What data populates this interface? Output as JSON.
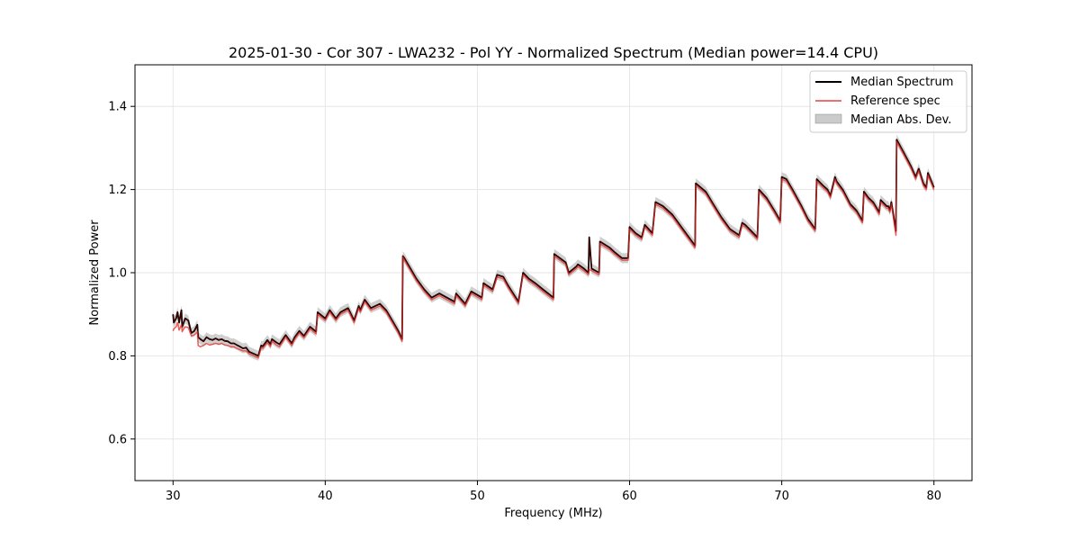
{
  "chart_data": {
    "type": "line",
    "title": "2025-01-30 - Cor 307 - LWA232 - Pol YY - Normalized Spectrum (Median power=14.4 CPU)",
    "xlabel": "Frequency (MHz)",
    "ylabel": "Normalized Power",
    "xlim": [
      27.5,
      82.5
    ],
    "ylim": [
      0.5,
      1.5
    ],
    "xticks": [
      30,
      40,
      50,
      60,
      70,
      80
    ],
    "yticks": [
      0.6,
      0.8,
      1.0,
      1.2,
      1.4
    ],
    "xtick_labels": [
      "30",
      "40",
      "50",
      "60",
      "70",
      "80"
    ],
    "ytick_labels": [
      "0.6",
      "0.8",
      "1.0",
      "1.2",
      "1.4"
    ],
    "grid": true,
    "legend_position": "top-right",
    "legend": [
      {
        "name": "Median Spectrum",
        "kind": "line",
        "color": "#000000"
      },
      {
        "name": "Reference spec",
        "kind": "line",
        "color": "#e8403a"
      },
      {
        "name": "Median Abs. Dev.",
        "kind": "band",
        "color": "#a8a8a8"
      }
    ],
    "series": [
      {
        "name": "Median Spectrum",
        "color": "#000000",
        "x": [
          30.0,
          30.05,
          30.2,
          30.3,
          30.4,
          30.55,
          30.6,
          30.7,
          30.8,
          31.0,
          31.2,
          31.4,
          31.6,
          31.65,
          31.8,
          32.0,
          32.2,
          32.4,
          32.6,
          32.8,
          33.0,
          33.2,
          33.4,
          33.6,
          33.8,
          34.0,
          34.2,
          34.4,
          34.6,
          34.8,
          35.0,
          35.3,
          35.6,
          35.8,
          35.9,
          36.2,
          36.4,
          36.5,
          36.8,
          37.0,
          37.4,
          37.8,
          38.0,
          38.3,
          38.6,
          39.0,
          39.4,
          39.5,
          40.0,
          40.3,
          40.7,
          41.0,
          41.5,
          41.9,
          42.2,
          42.3,
          42.6,
          43.0,
          43.6,
          44.0,
          44.4,
          44.8,
          45.05,
          45.1,
          45.2,
          46.0,
          46.5,
          47.0,
          47.5,
          48.0,
          48.5,
          48.6,
          49.2,
          49.6,
          50.3,
          50.4,
          51.0,
          51.3,
          51.7,
          52.0,
          52.7,
          53.0,
          53.4,
          53.8,
          54.3,
          55.0,
          55.05,
          55.8,
          56.0,
          56.5,
          56.6,
          57.0,
          57.3,
          57.35,
          57.5,
          58.0,
          58.05,
          58.7,
          59.0,
          59.5,
          59.9,
          60.0,
          60.4,
          60.8,
          61.0,
          61.5,
          61.7,
          62.2,
          62.8,
          63.4,
          64.0,
          64.3,
          64.35,
          65.0,
          65.5,
          66.0,
          66.6,
          67.2,
          67.4,
          67.6,
          68.0,
          68.4,
          68.5,
          69.0,
          69.5,
          69.9,
          70.0,
          70.3,
          70.7,
          71.3,
          71.7,
          72.2,
          72.3,
          72.7,
          73.0,
          73.2,
          73.5,
          73.6,
          74.0,
          74.5,
          74.9,
          75.3,
          75.4,
          75.7,
          76.0,
          76.4,
          76.5,
          76.9,
          77.0,
          77.1,
          77.2,
          77.5,
          77.55,
          78.0,
          78.5,
          78.8,
          79.0,
          79.3,
          79.5,
          79.6,
          80.0
        ],
        "y": [
          0.9,
          0.88,
          0.89,
          0.905,
          0.88,
          0.91,
          0.87,
          0.88,
          0.89,
          0.885,
          0.855,
          0.86,
          0.875,
          0.845,
          0.84,
          0.835,
          0.845,
          0.84,
          0.838,
          0.842,
          0.838,
          0.84,
          0.836,
          0.835,
          0.83,
          0.83,
          0.826,
          0.822,
          0.818,
          0.82,
          0.81,
          0.805,
          0.8,
          0.825,
          0.823,
          0.838,
          0.828,
          0.84,
          0.832,
          0.828,
          0.85,
          0.83,
          0.845,
          0.86,
          0.848,
          0.87,
          0.858,
          0.905,
          0.89,
          0.91,
          0.89,
          0.905,
          0.915,
          0.885,
          0.92,
          0.91,
          0.935,
          0.915,
          0.925,
          0.91,
          0.885,
          0.86,
          0.84,
          1.04,
          1.035,
          0.985,
          0.96,
          0.94,
          0.95,
          0.94,
          0.93,
          0.95,
          0.925,
          0.955,
          0.94,
          0.975,
          0.96,
          0.995,
          0.99,
          0.97,
          0.93,
          1.0,
          0.985,
          0.975,
          0.96,
          0.94,
          1.045,
          1.025,
          1.0,
          1.015,
          1.02,
          1.01,
          1.0,
          1.085,
          1.01,
          1.0,
          1.075,
          1.06,
          1.05,
          1.035,
          1.035,
          1.11,
          1.095,
          1.085,
          1.115,
          1.095,
          1.17,
          1.16,
          1.14,
          1.11,
          1.08,
          1.065,
          1.215,
          1.195,
          1.165,
          1.135,
          1.105,
          1.09,
          1.12,
          1.115,
          1.1,
          1.085,
          1.2,
          1.18,
          1.15,
          1.125,
          1.23,
          1.225,
          1.2,
          1.16,
          1.13,
          1.105,
          1.225,
          1.21,
          1.2,
          1.185,
          1.23,
          1.22,
          1.2,
          1.165,
          1.15,
          1.125,
          1.195,
          1.18,
          1.17,
          1.145,
          1.175,
          1.16,
          1.16,
          1.15,
          1.17,
          1.1,
          1.32,
          1.29,
          1.255,
          1.23,
          1.25,
          1.215,
          1.205,
          1.24,
          1.205
        ]
      },
      {
        "name": "Reference spec",
        "color": "#e8403a",
        "x": [
          30.0,
          30.05,
          30.2,
          30.3,
          30.4,
          30.55,
          30.6,
          30.7,
          30.8,
          31.0,
          31.2,
          31.4,
          31.6,
          31.65,
          31.8,
          32.0,
          32.2,
          32.4,
          32.6,
          32.8,
          33.0,
          33.2,
          33.4,
          33.6,
          33.8,
          34.0,
          34.2,
          34.4,
          34.6,
          34.8,
          35.0,
          35.3,
          35.6,
          35.8,
          35.9,
          36.2,
          36.4,
          36.5,
          36.8,
          37.0,
          37.4,
          37.8,
          38.0,
          38.3,
          38.6,
          39.0,
          39.4,
          39.5,
          40.0,
          40.3,
          40.7,
          41.0,
          41.5,
          41.9,
          42.2,
          42.3,
          42.6,
          43.0,
          43.6,
          44.0,
          44.4,
          44.8,
          45.05,
          45.1,
          45.2,
          46.0,
          46.5,
          47.0,
          47.5,
          48.0,
          48.5,
          48.6,
          49.2,
          49.6,
          50.3,
          50.4,
          51.0,
          51.3,
          51.7,
          52.0,
          52.7,
          53.0,
          53.4,
          53.8,
          54.3,
          55.0,
          55.05,
          55.8,
          56.0,
          56.5,
          56.6,
          57.0,
          57.3,
          57.35,
          57.5,
          58.0,
          58.05,
          58.7,
          59.0,
          59.5,
          59.9,
          60.0,
          60.4,
          60.8,
          61.0,
          61.5,
          61.7,
          62.2,
          62.8,
          63.4,
          64.0,
          64.3,
          64.35,
          65.0,
          65.5,
          66.0,
          66.6,
          67.2,
          67.4,
          67.6,
          68.0,
          68.4,
          68.5,
          69.0,
          69.5,
          69.9,
          70.0,
          70.3,
          70.7,
          71.3,
          71.7,
          72.2,
          72.3,
          72.7,
          73.0,
          73.2,
          73.5,
          73.6,
          74.0,
          74.5,
          74.9,
          75.3,
          75.4,
          75.7,
          76.0,
          76.4,
          76.5,
          76.9,
          77.0,
          77.1,
          77.2,
          77.5,
          77.55,
          78.0,
          78.5,
          78.8,
          79.0,
          79.3,
          79.5,
          79.6,
          80.0
        ],
        "y": [
          0.86,
          0.865,
          0.87,
          0.88,
          0.862,
          0.875,
          0.858,
          0.865,
          0.87,
          0.868,
          0.848,
          0.85,
          0.858,
          0.825,
          0.822,
          0.825,
          0.83,
          0.826,
          0.828,
          0.83,
          0.828,
          0.83,
          0.826,
          0.825,
          0.822,
          0.822,
          0.818,
          0.815,
          0.812,
          0.812,
          0.805,
          0.8,
          0.795,
          0.82,
          0.818,
          0.832,
          0.822,
          0.835,
          0.826,
          0.822,
          0.845,
          0.825,
          0.84,
          0.855,
          0.843,
          0.865,
          0.853,
          0.9,
          0.885,
          0.905,
          0.885,
          0.9,
          0.91,
          0.88,
          0.915,
          0.905,
          0.93,
          0.91,
          0.92,
          0.905,
          0.88,
          0.855,
          0.835,
          1.038,
          1.03,
          0.98,
          0.955,
          0.935,
          0.945,
          0.935,
          0.925,
          0.945,
          0.92,
          0.95,
          0.935,
          0.97,
          0.955,
          0.99,
          0.985,
          0.965,
          0.925,
          0.995,
          0.98,
          0.97,
          0.955,
          0.935,
          1.04,
          1.02,
          0.995,
          1.01,
          1.015,
          1.005,
          0.995,
          1.008,
          1.005,
          0.995,
          1.07,
          1.055,
          1.045,
          1.03,
          1.03,
          1.105,
          1.09,
          1.08,
          1.11,
          1.09,
          1.165,
          1.155,
          1.135,
          1.105,
          1.075,
          1.06,
          1.21,
          1.19,
          1.16,
          1.13,
          1.1,
          1.085,
          1.115,
          1.11,
          1.095,
          1.08,
          1.195,
          1.175,
          1.145,
          1.12,
          1.225,
          1.22,
          1.195,
          1.155,
          1.125,
          1.1,
          1.22,
          1.205,
          1.195,
          1.18,
          1.225,
          1.215,
          1.195,
          1.16,
          1.145,
          1.12,
          1.19,
          1.175,
          1.165,
          1.14,
          1.17,
          1.155,
          1.155,
          1.145,
          1.165,
          1.09,
          1.315,
          1.285,
          1.25,
          1.225,
          1.245,
          1.21,
          1.2,
          1.235,
          1.2
        ]
      }
    ],
    "mad_band_halfwidth": 0.012
  }
}
